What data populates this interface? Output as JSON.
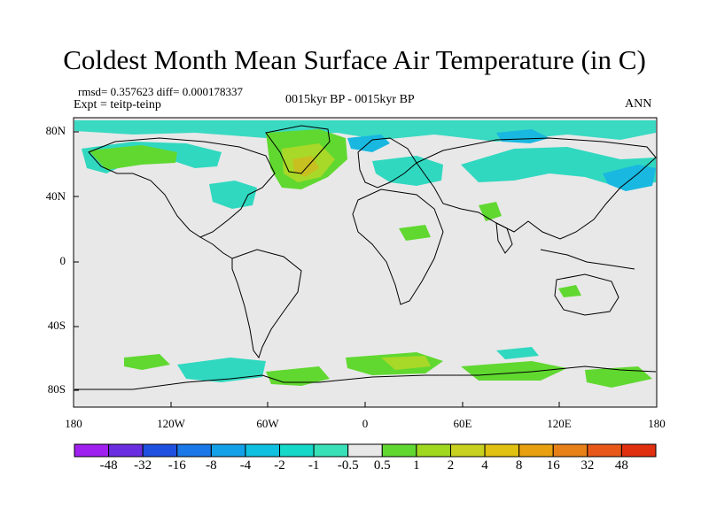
{
  "title": "Coldest Month Mean Surface Air Temperature (in C)",
  "stats": "rmsd= 0.357623 diff= 0.000178337",
  "expt": "Expt = teitp-teinp",
  "center_label": "0015kyr BP - 0015kyr BP",
  "season": "ANN",
  "y_ticks": [
    "80N",
    "40N",
    "0",
    "40S",
    "80S"
  ],
  "x_ticks": [
    "180",
    "120W",
    "60W",
    "0",
    "60E",
    "120E",
    "180"
  ],
  "colorbar": {
    "colors": [
      "#a020f0",
      "#6a2ee0",
      "#2050e0",
      "#1a78e8",
      "#12a0e8",
      "#10c0e0",
      "#14d8c8",
      "#38e0b8",
      "#e8e8e8",
      "#60d830",
      "#a0d820",
      "#c8d020",
      "#e0c010",
      "#e8a010",
      "#e88018",
      "#e85818",
      "#e03010"
    ],
    "labels": [
      "-48",
      "-32",
      "-16",
      "-8",
      "-4",
      "-2",
      "-1",
      "-0.5",
      "0.5",
      "1",
      "2",
      "4",
      "8",
      "16",
      "32",
      "48"
    ]
  },
  "colors": {
    "ocean_land_bg": "#e8e8e8",
    "coast": "#000000",
    "cool": "#30d8c0",
    "cooler": "#18b8e0",
    "warm": "#60d830",
    "warmer": "#a8d828",
    "warmest": "#c8c020"
  }
}
